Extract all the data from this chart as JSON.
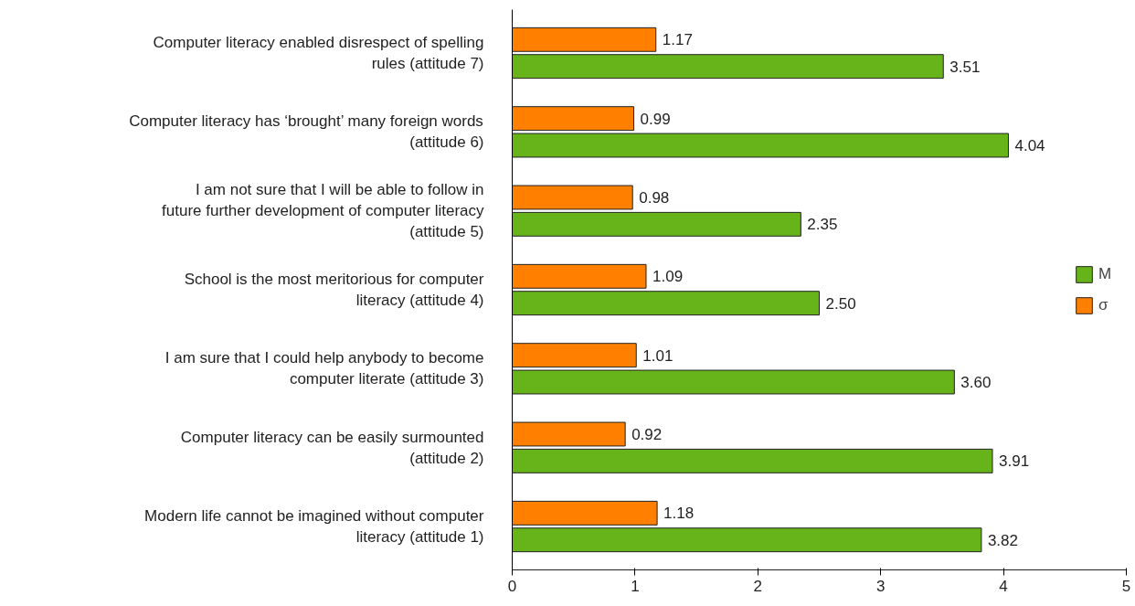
{
  "chart_data": {
    "type": "bar",
    "orientation": "horizontal",
    "categories": [
      "Computer literacy enabled disrespect of spelling rules (attitude 7)",
      "Computer literacy has ‘brought’ many foreign words (attitude 6)",
      "I am not sure that I will be able to follow in future further development of computer literacy (attitude 5)",
      "School is the most meritorious for computer literacy (attitude 4)",
      "I am sure that I could help anybody to become computer literate (attitude 3)",
      "Computer literacy can be easily surmounted (attitude 2)",
      "Modern life cannot be imagined without computer literacy (attitude 1)"
    ],
    "series": [
      {
        "name": "M",
        "color": "#66b41a",
        "values": [
          3.51,
          4.04,
          2.35,
          2.5,
          3.6,
          3.91,
          3.82
        ],
        "value_labels": [
          "3.51",
          "4.04",
          "2.35",
          "2.50",
          "3.60",
          "3.91",
          "3.82"
        ]
      },
      {
        "name": "σ",
        "color": "#ff8000",
        "values": [
          1.17,
          0.99,
          0.98,
          1.09,
          1.01,
          0.92,
          1.18
        ],
        "value_labels": [
          "1.17",
          "0.99",
          "0.98",
          "1.09",
          "1.01",
          "0.92",
          "1.18"
        ]
      }
    ],
    "xlim": [
      0,
      5
    ],
    "xticks": [
      0,
      1,
      2,
      3,
      4,
      5
    ],
    "grid": false,
    "legend": "right"
  }
}
